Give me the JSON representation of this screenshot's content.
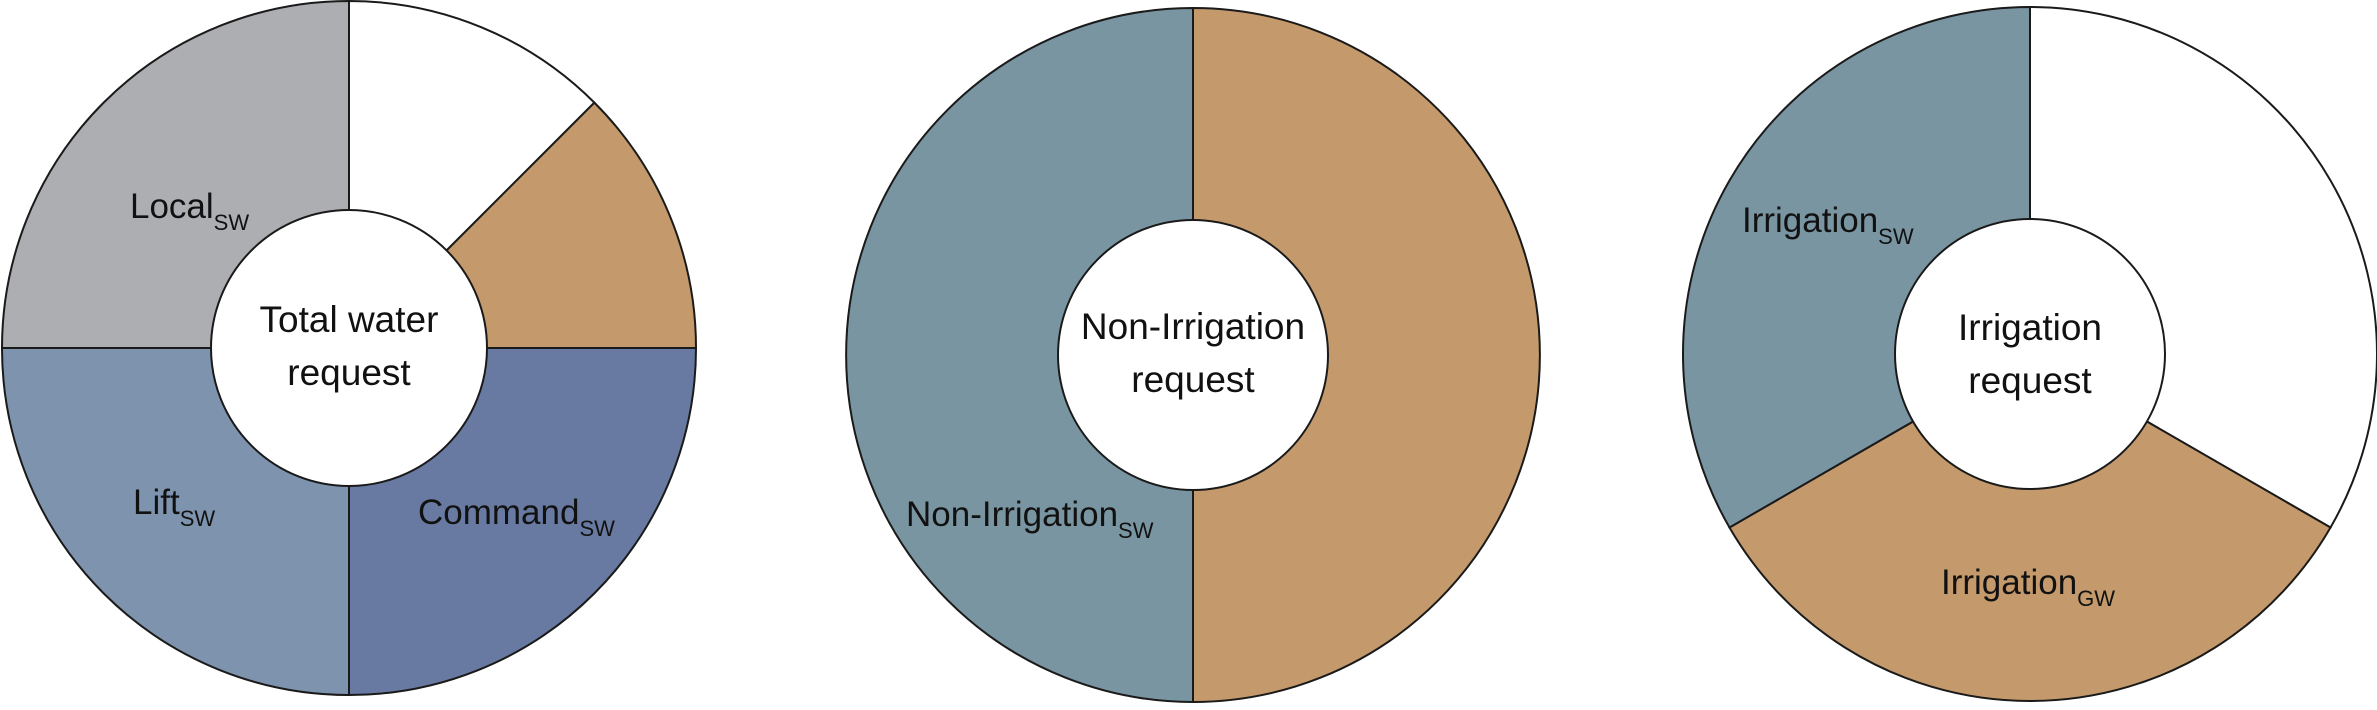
{
  "colors": {
    "white": "#ffffff",
    "tan": "#c49a6c",
    "grey": "#adaeb2",
    "blue_grey": "#7e94ae",
    "slate": "#687aa1",
    "teal_grey": "#7a95a2",
    "outline": "#1a1a1a"
  },
  "diagrams": [
    {
      "center_lines": [
        "Total water",
        "request"
      ],
      "segments": [
        {
          "id": "unlabeled-white",
          "from_deg": 0,
          "to_deg": 45,
          "color": "#ffffff",
          "label": "",
          "sub": ""
        },
        {
          "id": "unlabeled-tan",
          "from_deg": 45,
          "to_deg": 90,
          "color": "#c49a6c",
          "label": "",
          "sub": ""
        },
        {
          "id": "command",
          "from_deg": 90,
          "to_deg": 180,
          "color": "#687aa1",
          "label": "Command",
          "sub": "SW"
        },
        {
          "id": "lift",
          "from_deg": 180,
          "to_deg": 270,
          "color": "#7e94ae",
          "label": "Lift",
          "sub": "SW"
        },
        {
          "id": "local",
          "from_deg": 270,
          "to_deg": 360,
          "color": "#adaeb2",
          "label": "Local",
          "sub": "SW"
        }
      ]
    },
    {
      "center_lines": [
        "Non-Irrigation",
        "request"
      ],
      "segments": [
        {
          "id": "unlabeled-tan",
          "from_deg": 0,
          "to_deg": 180,
          "color": "#c49a6c",
          "label": "",
          "sub": ""
        },
        {
          "id": "non-irrigation",
          "from_deg": 180,
          "to_deg": 360,
          "color": "#7a95a2",
          "label": "Non-Irrigation",
          "sub": "SW"
        }
      ]
    },
    {
      "center_lines": [
        "Irrigation",
        "request"
      ],
      "segments": [
        {
          "id": "unlabeled-white",
          "from_deg": 0,
          "to_deg": 120,
          "color": "#ffffff",
          "label": "",
          "sub": ""
        },
        {
          "id": "irrigation-gw",
          "from_deg": 120,
          "to_deg": 240,
          "color": "#c49a6c",
          "label": "Irrigation",
          "sub": "GW"
        },
        {
          "id": "irrigation-sw",
          "from_deg": 240,
          "to_deg": 360,
          "color": "#7a95a2",
          "label": "Irrigation",
          "sub": "SW"
        }
      ]
    }
  ]
}
